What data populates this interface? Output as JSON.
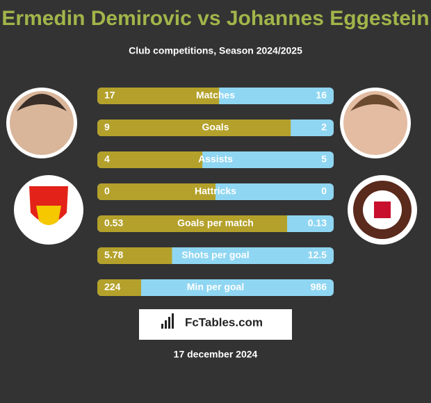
{
  "header": {
    "title": "Ermedin Demirovic vs Johannes Eggestein",
    "subtitle": "Club competitions, Season 2024/2025"
  },
  "comparison": {
    "left_color": "#b4a12b",
    "right_color": "#8fd6f2",
    "rows": [
      {
        "label": "Matches",
        "left": 17,
        "right": 16
      },
      {
        "label": "Goals",
        "left": 9,
        "right": 2
      },
      {
        "label": "Assists",
        "left": 4,
        "right": 5
      },
      {
        "label": "Hattricks",
        "left": 0,
        "right": 0
      },
      {
        "label": "Goals per match",
        "left": 0.53,
        "right": 0.13
      },
      {
        "label": "Shots per goal",
        "left": 5.78,
        "right": 12.5
      },
      {
        "label": "Min per goal",
        "left": 224,
        "right": 986
      }
    ]
  },
  "brand": "FcTables.com",
  "date": "17 december 2024"
}
